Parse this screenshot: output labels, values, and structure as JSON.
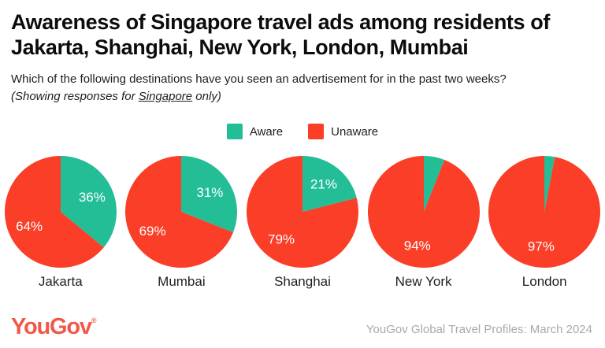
{
  "header": {
    "title_line1": "Awareness of Singapore travel ads among residents of",
    "title_line2": "Jakarta, Shanghai, New York, London, Mumbai",
    "subtitle": "Which of the following destinations have you seen an advertisement for in the past two weeks?",
    "note_prefix": "(Showing responses for ",
    "note_underlined": "Singapore",
    "note_suffix": " only)"
  },
  "chart_data": {
    "type": "pie",
    "title": "Awareness of Singapore travel ads among residents of Jakarta, Shanghai, New York, London, Mumbai",
    "question": "Which of the following destinations have you seen an advertisement for in the past two weeks? (Showing responses for Singapore only)",
    "legend_position": "top-center",
    "start_angle_deg": 0,
    "direction": "clockwise",
    "legend": [
      {
        "label": "Aware",
        "color": "#23bd96"
      },
      {
        "label": "Unaware",
        "color": "#fa3e28"
      }
    ],
    "charts": [
      {
        "city": "Jakarta",
        "slices": [
          {
            "name": "Aware",
            "value": 36,
            "label": "36%"
          },
          {
            "name": "Unaware",
            "value": 64,
            "label": "64%"
          }
        ]
      },
      {
        "city": "Mumbai",
        "slices": [
          {
            "name": "Aware",
            "value": 31,
            "label": "31%"
          },
          {
            "name": "Unaware",
            "value": 69,
            "label": "69%"
          }
        ]
      },
      {
        "city": "Shanghai",
        "slices": [
          {
            "name": "Aware",
            "value": 21,
            "label": "21%"
          },
          {
            "name": "Unaware",
            "value": 79,
            "label": "79%"
          }
        ]
      },
      {
        "city": "New York",
        "slices": [
          {
            "name": "Aware",
            "value": 6,
            "label": ""
          },
          {
            "name": "Unaware",
            "value": 94,
            "label": "94%"
          }
        ]
      },
      {
        "city": "London",
        "slices": [
          {
            "name": "Aware",
            "value": 3,
            "label": ""
          },
          {
            "name": "Unaware",
            "value": 97,
            "label": "97%"
          }
        ]
      }
    ],
    "slice_label_color": "#ffffff"
  },
  "footer": {
    "logo_text": "YouGov",
    "logo_reg": "®",
    "logo_color": "#f0584c",
    "source": "YouGov Global Travel Profiles: March 2024"
  }
}
